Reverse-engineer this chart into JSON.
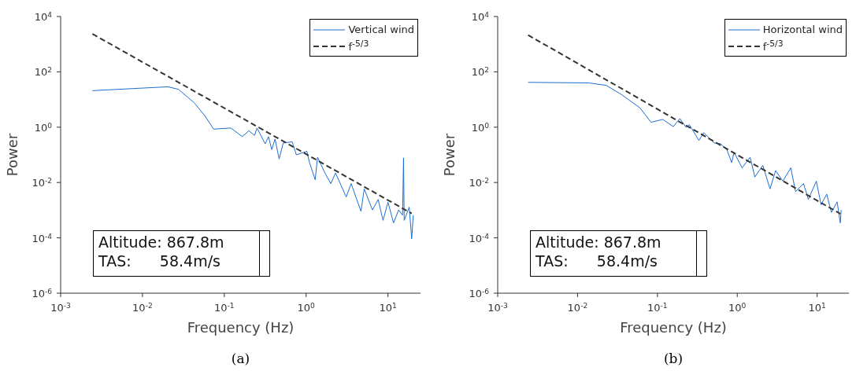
{
  "chart_data": [
    {
      "type": "line",
      "xlabel": "Frequency (Hz)",
      "ylabel": "Power",
      "log": "xy",
      "legend": "top right",
      "xlim": [
        0.001,
        25
      ],
      "ylim": [
        1e-06,
        10000
      ],
      "xticks": [
        {
          "value": 0.001,
          "label": "10$^{-3}$"
        },
        {
          "value": 0.01,
          "label": "10$^{-2}$"
        },
        {
          "value": 0.1,
          "label": "10$^{-1}$"
        },
        {
          "value": 1,
          "label": "10$^{0}$"
        },
        {
          "value": 10,
          "label": "10$^{1}$"
        }
      ],
      "yticks": [
        {
          "value": 1e-06,
          "label": "10$^{-6}$"
        },
        {
          "value": 0.0001,
          "label": "10$^{-4}$"
        },
        {
          "value": 0.01,
          "label": "10$^{-2}$"
        },
        {
          "value": 1,
          "label": "10$^{0}$"
        },
        {
          "value": 100,
          "label": "10$^{2}$"
        },
        {
          "value": 10000,
          "label": "10$^{4}$"
        }
      ],
      "annotations": [
        "Altitude: 867.8m",
        "TAS:      58.4m/s",
        "(a)"
      ],
      "series": [
        {
          "name": "Vertical wind",
          "color": "#1a6fd4",
          "line_style": "solid",
          "x": [
            0.00245,
            0.0204,
            0.0275,
            0.0427,
            0.0575,
            0.0741,
            0.12,
            0.166,
            0.2,
            0.234,
            0.251,
            0.316,
            0.347,
            0.38,
            0.417,
            0.468,
            0.525,
            0.676,
            0.759,
            1.02,
            1.1,
            1.29,
            1.38,
            1.7,
            2,
            2.29,
            3.09,
            3.55,
            4.68,
            5.13,
            6.46,
            7.59,
            8.71,
            10,
            11.7,
            13.5,
            15.1,
            15.5,
            15.8,
            18.2,
            19.5,
            20.4
          ],
          "values": [
            20.9,
            28.8,
            23.4,
            7.76,
            2.63,
            0.851,
            0.933,
            0.457,
            0.741,
            0.501,
            0.933,
            0.251,
            0.457,
            0.155,
            0.372,
            0.0708,
            0.269,
            0.295,
            0.1,
            0.135,
            0.0525,
            0.0126,
            0.0813,
            0.0219,
            0.00912,
            0.0219,
            0.00302,
            0.00912,
            0.000912,
            0.00589,
            0.00102,
            0.00245,
            0.000427,
            0.00195,
            0.000347,
            0.00102,
            0.000661,
            0.0776,
            0.000427,
            0.00129,
            9.33e-05,
            0.000661
          ]
        },
        {
          "name": "f$^{-5/3}$",
          "color": "#333333",
          "line_style": "dashed",
          "x": [
            0.00245,
            19.5
          ],
          "values": [
            2340,
            0.00076
          ]
        }
      ]
    },
    {
      "type": "line",
      "xlabel": "Frequency (Hz)",
      "ylabel": "Power",
      "log": "xy",
      "legend": "top right",
      "xlim": [
        0.001,
        25
      ],
      "ylim": [
        1e-06,
        10000
      ],
      "xticks": [
        {
          "value": 0.001,
          "label": "10$^{-3}$"
        },
        {
          "value": 0.01,
          "label": "10$^{-2}$"
        },
        {
          "value": 0.1,
          "label": "10$^{-1}$"
        },
        {
          "value": 1,
          "label": "10$^{0}$"
        },
        {
          "value": 10,
          "label": "10$^{1}$"
        }
      ],
      "yticks": [
        {
          "value": 1e-06,
          "label": "10$^{-6}$"
        },
        {
          "value": 0.0001,
          "label": "10$^{-4}$"
        },
        {
          "value": 0.01,
          "label": "10$^{-2}$"
        },
        {
          "value": 1,
          "label": "10$^{0}$"
        },
        {
          "value": 100,
          "label": "10$^{2}$"
        },
        {
          "value": 10000,
          "label": "10$^{4}$"
        }
      ],
      "annotations": [
        "Altitude: 867.8m",
        "TAS:      58.4m/s",
        "(b)"
      ],
      "series": [
        {
          "name": "Horizontal wind",
          "color": "#1a6fd4",
          "line_style": "solid",
          "x": [
            0.0024,
            0.0138,
            0.0229,
            0.0355,
            0.0603,
            0.0832,
            0.117,
            0.158,
            0.191,
            0.229,
            0.251,
            0.331,
            0.38,
            0.513,
            0.617,
            0.741,
            0.851,
            0.912,
            1.15,
            1.45,
            1.66,
            2.09,
            2.57,
            3.02,
            3.72,
            4.68,
            5.37,
            6.76,
            7.76,
            9.77,
            11.2,
            13.2,
            15.1,
            17.8,
            19.5,
            20
          ],
          "values": [
            41.7,
            39.8,
            32.4,
            15.1,
            5.01,
            1.51,
            1.91,
            1.05,
            2.04,
            0.977,
            1.23,
            0.331,
            0.631,
            0.269,
            0.251,
            0.155,
            0.0525,
            0.123,
            0.0339,
            0.0813,
            0.0158,
            0.0417,
            0.00589,
            0.0269,
            0.0112,
            0.0339,
            0.00468,
            0.00912,
            0.00245,
            0.0112,
            0.00158,
            0.0038,
            0.000832,
            0.002,
            0.000347,
            0.00102
          ]
        },
        {
          "name": "f$^{-5/3}$",
          "color": "#333333",
          "line_style": "dashed",
          "x": [
            0.0024,
            19.5
          ],
          "values": [
            2140,
            0.00074
          ]
        }
      ]
    }
  ]
}
